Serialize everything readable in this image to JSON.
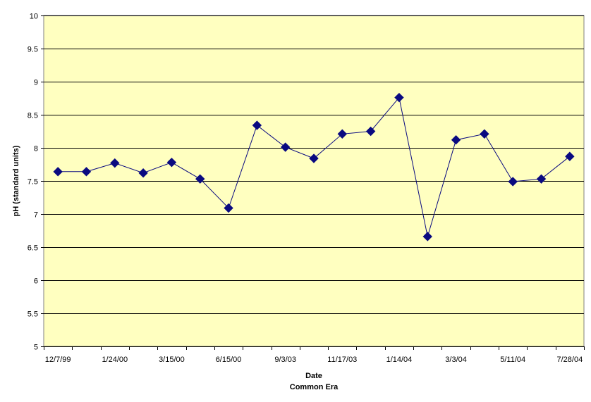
{
  "chart_data": {
    "type": "line",
    "title": "",
    "xlabel": "Date",
    "xlabel_secondary": "Common Era",
    "ylabel": "pH (standard units)",
    "ylim": [
      5,
      10
    ],
    "y_ticks": [
      "5",
      "5.5",
      "6",
      "6.5",
      "7",
      "7.5",
      "8",
      "8.5",
      "9",
      "9.5",
      "10"
    ],
    "x_tick_labels": [
      "12/7/99",
      "1/24/00",
      "3/15/00",
      "6/15/00",
      "9/3/03",
      "11/17/03",
      "1/14/04",
      "3/3/04",
      "5/11/04",
      "7/28/04"
    ],
    "grid": true,
    "legend": "none",
    "series": [
      {
        "values": [
          7.64,
          7.64,
          7.77,
          7.62,
          7.78,
          7.53,
          7.09,
          8.34,
          8.01,
          7.84,
          8.21,
          8.25,
          8.76,
          6.66,
          8.12,
          8.21,
          7.49,
          7.53,
          7.87
        ]
      }
    ],
    "colors": {
      "plot_background": "#FFFFC0",
      "line": "#0A0A80",
      "marker": "#0A0A80",
      "gridline": "#000000"
    }
  }
}
